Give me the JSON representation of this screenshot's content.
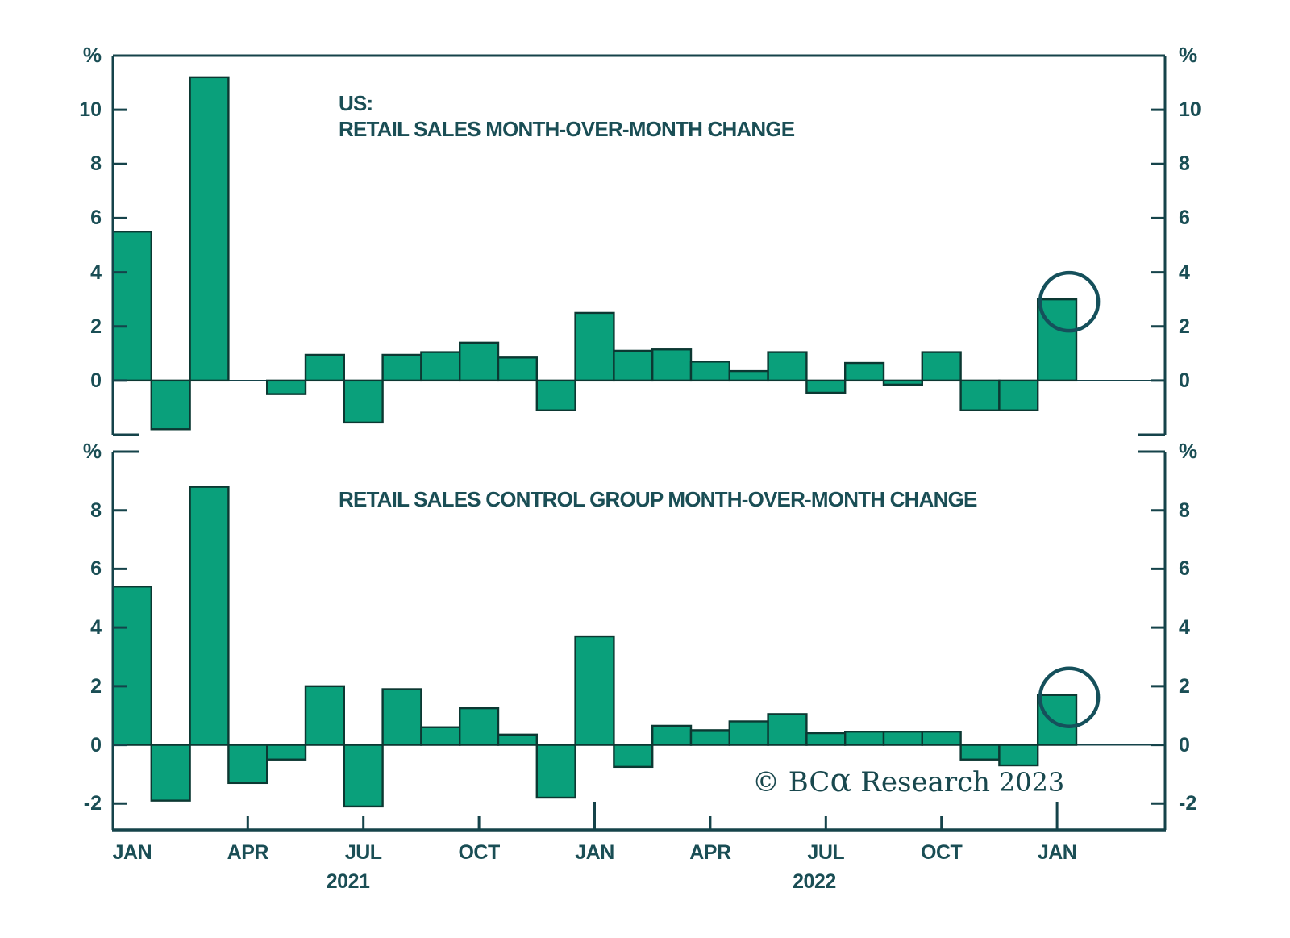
{
  "colors": {
    "background": "#ffffff",
    "bar_fill": "#0aa07b",
    "bar_border": "#0c3832",
    "axis": "#15434a",
    "text": "#1a4e55",
    "circle": "#15505b"
  },
  "top_panel": {
    "title_line1": "US:",
    "title_line2": "RETAIL SALES MONTH-OVER-MONTH CHANGE",
    "unit_label_left": "%",
    "unit_label_right": "%"
  },
  "bottom_panel": {
    "title": "RETAIL SALES CONTROL GROUP MONTH-OVER-MONTH CHANGE",
    "unit_label_left": "%",
    "unit_label_right": "%"
  },
  "copyright": {
    "prefix": "© BC",
    "alpha": "α",
    "suffix": " Research ",
    "year": "2023"
  },
  "x_axis": {
    "month_tick_labels": [
      {
        "label": "JAN",
        "month_index": 0
      },
      {
        "label": "APR",
        "month_index": 3
      },
      {
        "label": "JUL",
        "month_index": 6
      },
      {
        "label": "OCT",
        "month_index": 9
      },
      {
        "label": "JAN",
        "month_index": 12
      },
      {
        "label": "APR",
        "month_index": 15
      },
      {
        "label": "JUL",
        "month_index": 18
      },
      {
        "label": "OCT",
        "month_index": 21
      },
      {
        "label": "JAN",
        "month_index": 24
      }
    ],
    "year_labels": [
      {
        "label": "2021",
        "month_index": 5.6
      },
      {
        "label": "2022",
        "month_index": 17.7
      }
    ],
    "quarter_tick_indices": [
      3,
      6,
      9,
      15,
      18,
      21
    ],
    "year_tick_indices": [
      12,
      24
    ]
  },
  "chart_data": [
    {
      "type": "bar",
      "title": "US: RETAIL SALES MONTH-OVER-MONTH CHANGE",
      "ylabel": "%",
      "ylim": [
        -2,
        12
      ],
      "yticks": [
        0,
        2,
        4,
        6,
        8,
        10
      ],
      "grid": false,
      "x": [
        "Jan 2021",
        "Feb 2021",
        "Mar 2021",
        "Apr 2021",
        "May 2021",
        "Jun 2021",
        "Jul 2021",
        "Aug 2021",
        "Sep 2021",
        "Oct 2021",
        "Nov 2021",
        "Dec 2021",
        "Jan 2022",
        "Feb 2022",
        "Mar 2022",
        "Apr 2022",
        "May 2022",
        "Jun 2022",
        "Jul 2022",
        "Aug 2022",
        "Sep 2022",
        "Oct 2022",
        "Nov 2022",
        "Dec 2022",
        "Jan 2023"
      ],
      "values": [
        5.5,
        -1.8,
        11.2,
        0.0,
        -0.5,
        0.95,
        -1.55,
        0.95,
        1.05,
        1.4,
        0.85,
        -1.1,
        2.5,
        1.1,
        1.15,
        0.7,
        0.35,
        1.05,
        -0.45,
        0.65,
        -0.15,
        1.05,
        -1.1,
        -1.1,
        3.0
      ],
      "annotation": {
        "shape": "circle",
        "month": "Jan 2023",
        "value": 3.0,
        "note": "latest value circled"
      }
    },
    {
      "type": "bar",
      "title": "RETAIL SALES CONTROL GROUP MONTH-OVER-MONTH CHANGE",
      "ylabel": "%",
      "ylim": [
        -2.9,
        10
      ],
      "yticks": [
        -2,
        0,
        2,
        4,
        6,
        8
      ],
      "grid": false,
      "x": [
        "Jan 2021",
        "Feb 2021",
        "Mar 2021",
        "Apr 2021",
        "May 2021",
        "Jun 2021",
        "Jul 2021",
        "Aug 2021",
        "Sep 2021",
        "Oct 2021",
        "Nov 2021",
        "Dec 2021",
        "Jan 2022",
        "Feb 2022",
        "Mar 2022",
        "Apr 2022",
        "May 2022",
        "Jun 2022",
        "Jul 2022",
        "Aug 2022",
        "Sep 2022",
        "Oct 2022",
        "Nov 2022",
        "Dec 2022",
        "Jan 2023"
      ],
      "values": [
        5.4,
        -1.9,
        8.8,
        -1.3,
        -0.5,
        2.0,
        -2.1,
        1.9,
        0.6,
        1.25,
        0.35,
        -1.8,
        3.7,
        -0.75,
        0.65,
        0.5,
        0.8,
        1.05,
        0.4,
        0.45,
        0.45,
        0.45,
        -0.5,
        -0.7,
        1.7
      ],
      "annotation": {
        "shape": "circle",
        "month": "Jan 2023",
        "value": 1.7,
        "note": "latest value circled"
      }
    }
  ]
}
